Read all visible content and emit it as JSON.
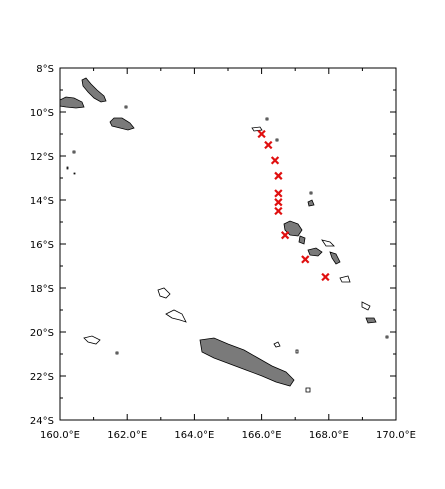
{
  "map": {
    "region": {
      "lon_min": 160,
      "lon_max": 170,
      "lat_min": -24,
      "lat_max": -8
    },
    "x_tick_labels": [
      "160.0°E",
      "162.0°E",
      "164.0°E",
      "166.0°E",
      "168.0°E",
      "170.0°E"
    ],
    "y_tick_labels": [
      "8°S",
      "10°S",
      "12°S",
      "14°S",
      "16°S",
      "18°S",
      "20°S",
      "22°S",
      "24°S"
    ],
    "marker_color": "#e01010",
    "land_color": "#7a7a7a",
    "markers": [
      {
        "lon": 166.0,
        "lat": -11.0
      },
      {
        "lon": 166.2,
        "lat": -11.5
      },
      {
        "lon": 166.4,
        "lat": -12.2
      },
      {
        "lon": 166.5,
        "lat": -12.9
      },
      {
        "lon": 166.5,
        "lat": -13.7
      },
      {
        "lon": 166.5,
        "lat": -14.1
      },
      {
        "lon": 166.5,
        "lat": -14.5
      },
      {
        "lon": 166.7,
        "lat": -15.6
      },
      {
        "lon": 167.3,
        "lat": -16.7
      },
      {
        "lon": 167.9,
        "lat": -17.5
      }
    ]
  }
}
